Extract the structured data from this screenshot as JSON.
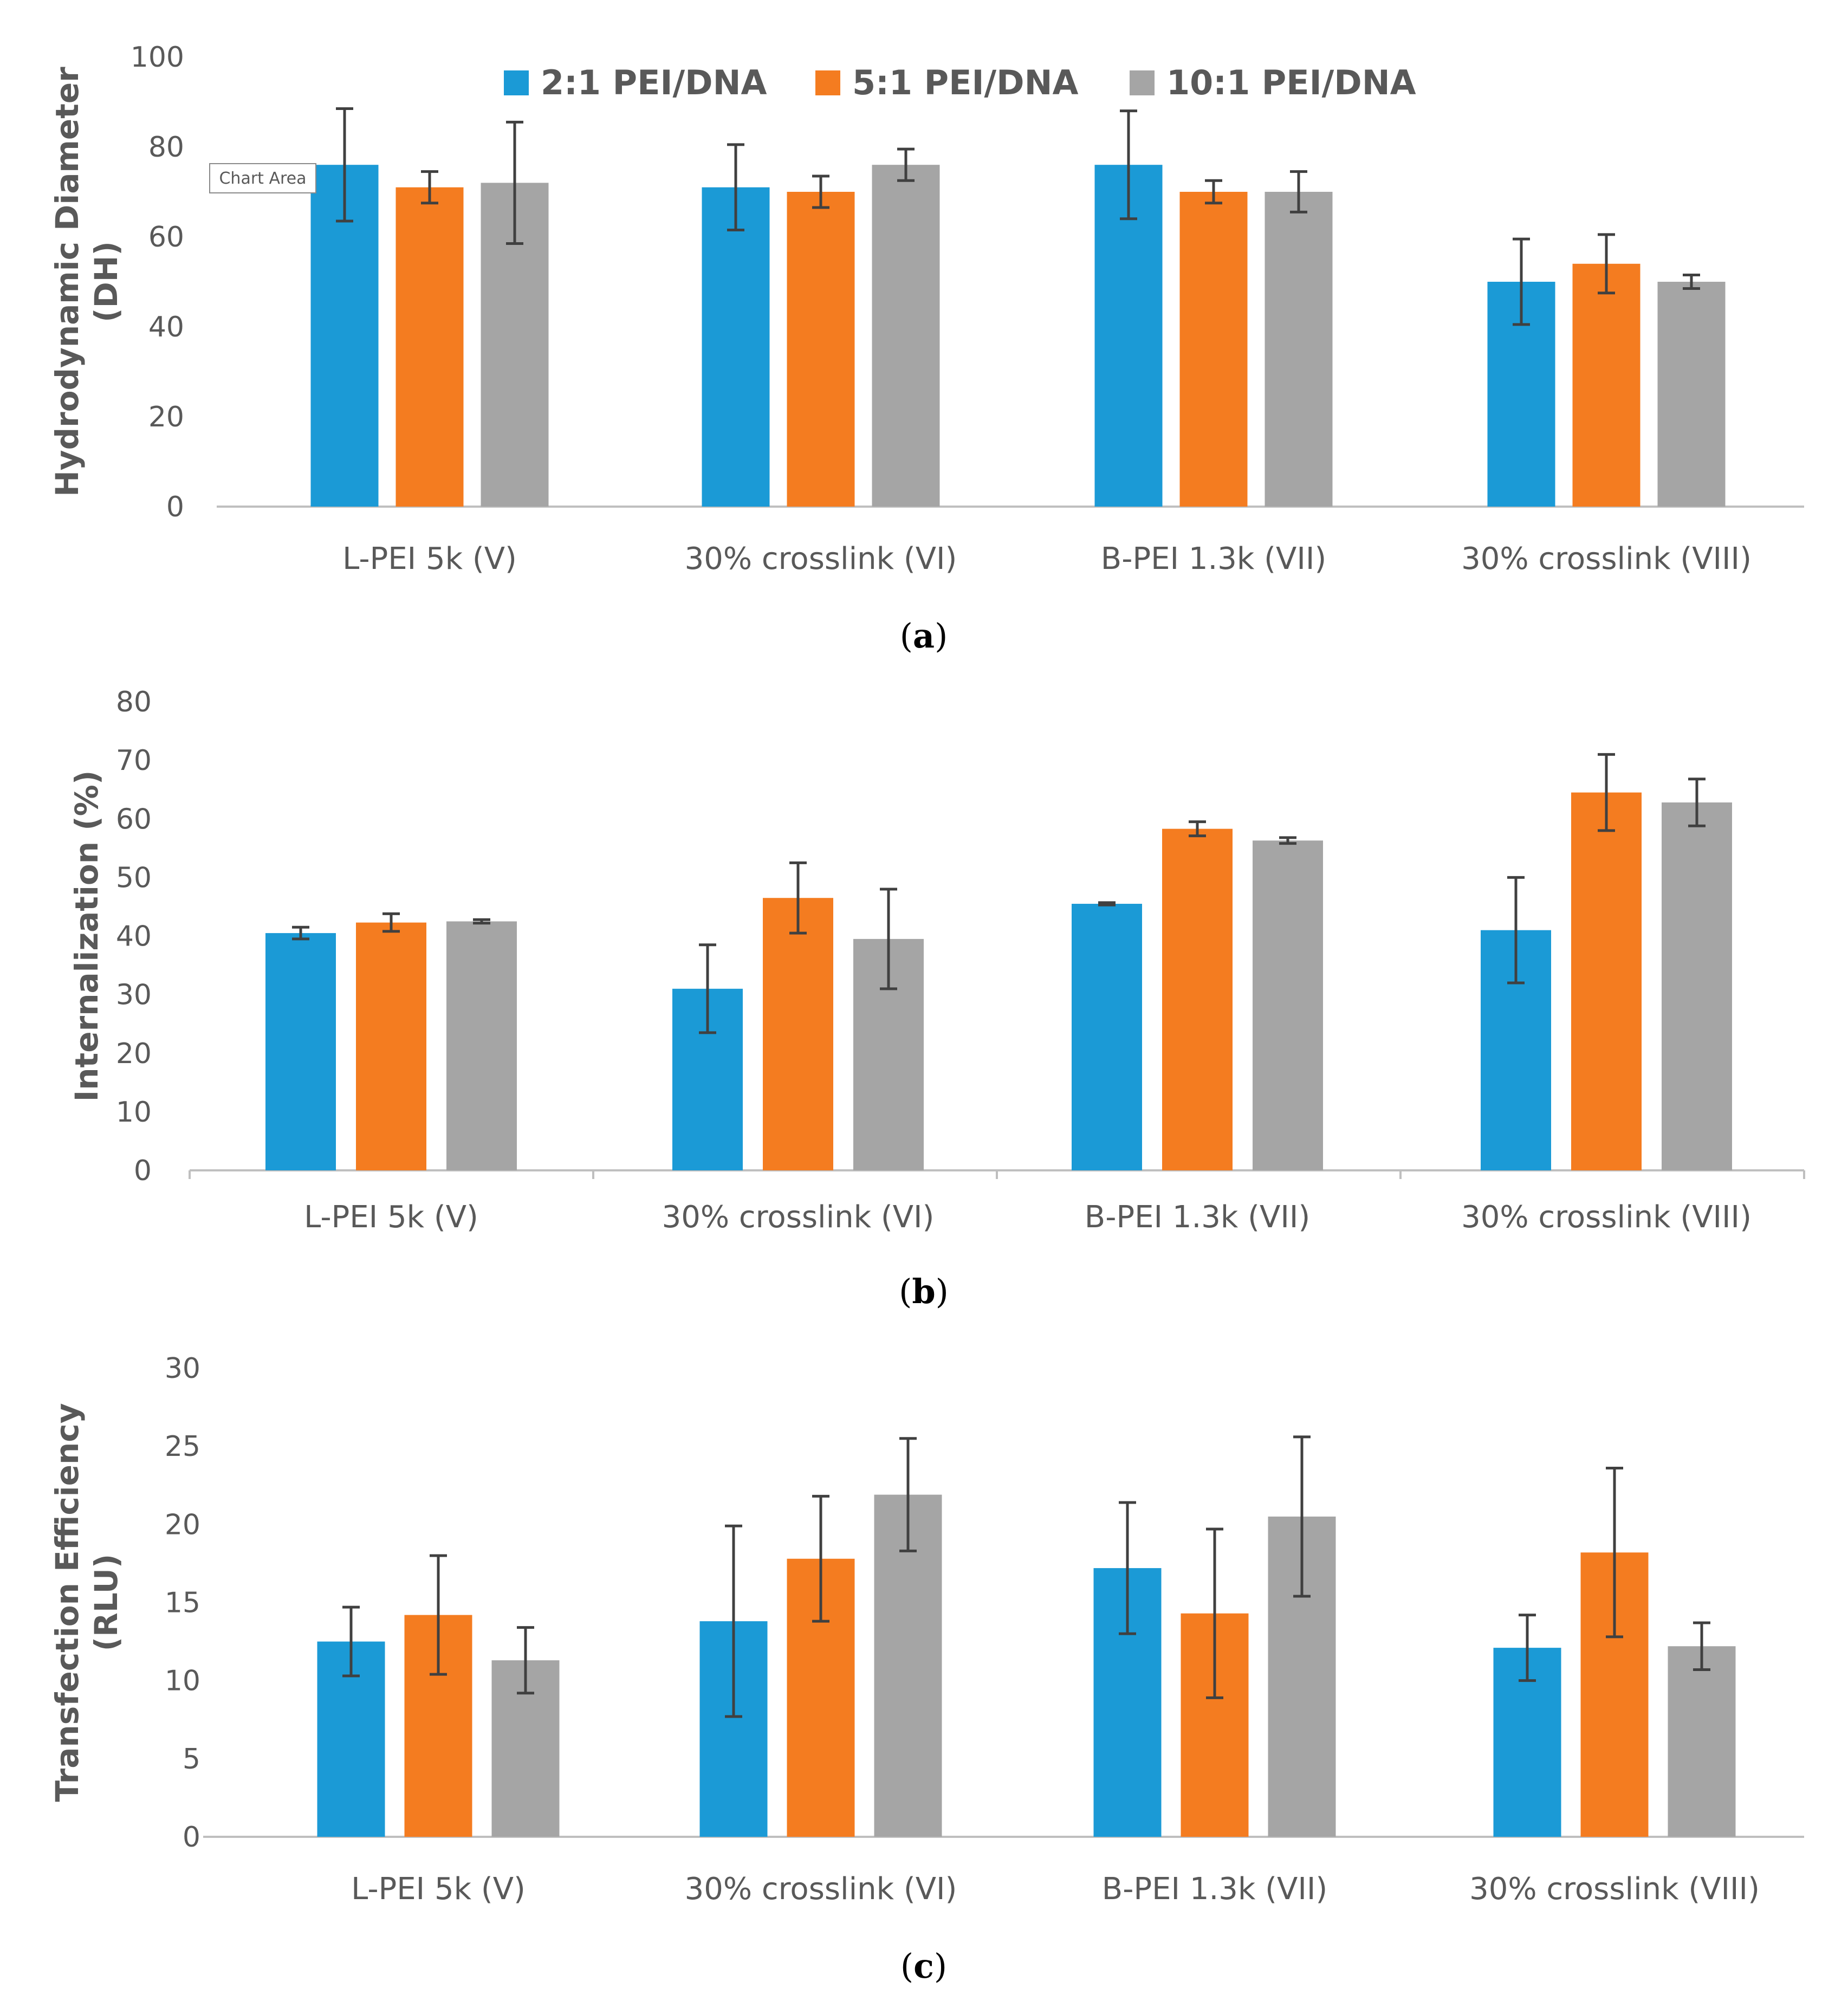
{
  "colors": {
    "series": [
      "#1b9ad6",
      "#f47c20",
      "#a5a5a5"
    ],
    "axis": "#bfbfbf",
    "error_bar": "#404040",
    "text": "#595959"
  },
  "legend": [
    "2:1 PEI/DNA",
    "5:1 PEI/DNA",
    "10:1 PEI/DNA"
  ],
  "tooltip": {
    "label": "Chart Area"
  },
  "chart_data": [
    {
      "type": "bar",
      "panel": "a",
      "caption_open": "(",
      "caption_letter": "a",
      "caption_close": ")",
      "ylabel_lines": [
        "Hydrodynamic Diameter",
        "(DH)"
      ],
      "ylim": [
        0,
        100
      ],
      "yticks": [
        0,
        20,
        40,
        60,
        80,
        100
      ],
      "categories": [
        "L-PEI 5k (V)",
        "30% crosslink (VI)",
        "B-PEI 1.3k (VII)",
        "30% crosslink (VIII)"
      ],
      "category_ticks": false,
      "series": [
        {
          "name": "2:1 PEI/DNA",
          "values": [
            76,
            71,
            76,
            50
          ],
          "errors": [
            12.5,
            9.5,
            12,
            9.5
          ]
        },
        {
          "name": "5:1 PEI/DNA",
          "values": [
            71,
            70,
            70,
            54
          ],
          "errors": [
            3.5,
            3.5,
            2.5,
            6.5
          ]
        },
        {
          "name": "10:1 PEI/DNA",
          "values": [
            72,
            76,
            70,
            50
          ],
          "errors": [
            13.5,
            3.5,
            4.5,
            1.5
          ]
        }
      ]
    },
    {
      "type": "bar",
      "panel": "b",
      "caption_open": "(",
      "caption_letter": "b",
      "caption_close": ")",
      "ylabel_lines": [
        "Internalization (%)"
      ],
      "ylim": [
        0,
        80
      ],
      "yticks": [
        0,
        10,
        20,
        30,
        40,
        50,
        60,
        70,
        80
      ],
      "categories": [
        "L-PEI 5k (V)",
        "30% crosslink (VI)",
        "B-PEI 1.3k (VII)",
        "30% crosslink (VIII)"
      ],
      "category_ticks": true,
      "series": [
        {
          "name": "2:1 PEI/DNA",
          "values": [
            40.5,
            31,
            45.5,
            41
          ],
          "errors": [
            1,
            7.5,
            0.2,
            9
          ]
        },
        {
          "name": "5:1 PEI/DNA",
          "values": [
            42.3,
            46.5,
            58.3,
            64.5
          ],
          "errors": [
            1.5,
            6,
            1.2,
            6.5
          ]
        },
        {
          "name": "10:1 PEI/DNA",
          "values": [
            42.5,
            39.5,
            56.3,
            62.8
          ],
          "errors": [
            0.3,
            8.5,
            0.5,
            4
          ]
        }
      ]
    },
    {
      "type": "bar",
      "panel": "c",
      "caption_open": "(",
      "caption_letter": "c",
      "caption_close": ")",
      "ylabel_lines": [
        "Transfection Efficiency",
        "(RLU)"
      ],
      "ylim": [
        0,
        30
      ],
      "yticks": [
        0,
        5,
        10,
        15,
        20,
        25,
        30
      ],
      "categories": [
        "L-PEI 5k (V)",
        "30% crosslink (VI)",
        "B-PEI 1.3k (VII)",
        "30% crosslink (VIII)"
      ],
      "category_ticks": false,
      "series": [
        {
          "name": "2:1 PEI/DNA",
          "values": [
            12.5,
            13.8,
            17.2,
            12.1
          ],
          "errors": [
            2.2,
            6.1,
            4.2,
            2.1
          ]
        },
        {
          "name": "5:1 PEI/DNA",
          "values": [
            14.2,
            17.8,
            14.3,
            18.2
          ],
          "errors": [
            3.8,
            4,
            5.4,
            5.4
          ]
        },
        {
          "name": "10:1 PEI/DNA",
          "values": [
            11.3,
            21.9,
            20.5,
            12.2
          ],
          "errors": [
            2.1,
            3.6,
            5.1,
            1.5
          ]
        }
      ]
    }
  ]
}
